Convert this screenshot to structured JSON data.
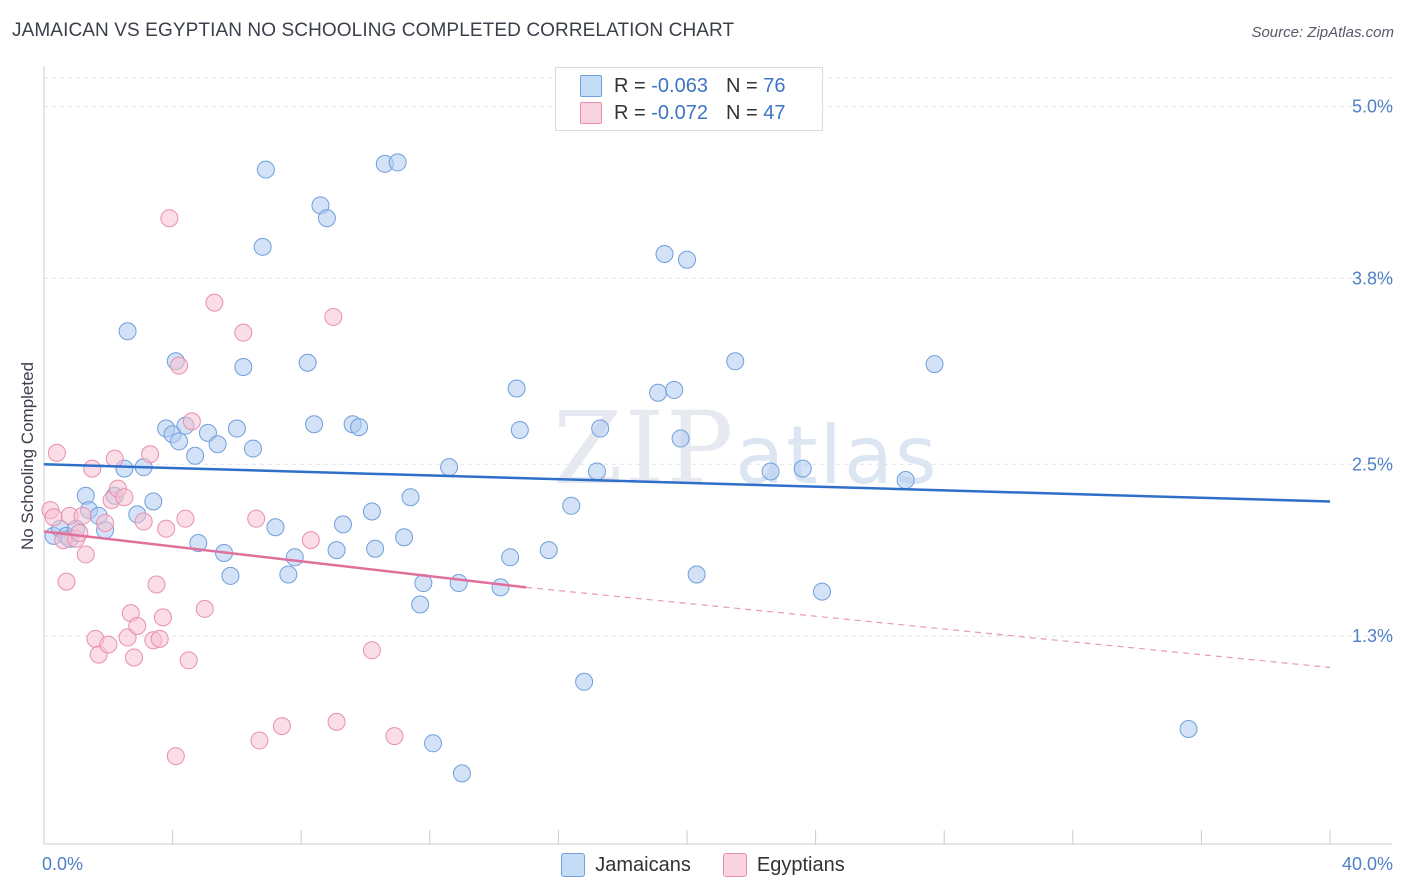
{
  "header": {
    "title": "JAMAICAN VS EGYPTIAN NO SCHOOLING COMPLETED CORRELATION CHART",
    "source": "Source: ZipAtlas.com"
  },
  "legend_stats": {
    "jamaicans": {
      "r_label": "R = ",
      "r_value": "-0.063",
      "n_label": "N = ",
      "n_value": "76",
      "color": "#aecbf0"
    },
    "egyptians": {
      "r_label": "R = ",
      "r_value": "-0.072",
      "n_label": "N = ",
      "n_value": "47",
      "color": "#f6c1d2"
    }
  },
  "bottom_legend": {
    "jamaicans": "Jamaicans",
    "egyptians": "Egyptians"
  },
  "watermark": {
    "zip": "ZIP",
    "atlas": "atlas"
  },
  "chart_data": {
    "type": "scatter",
    "title": "JAMAICAN VS EGYPTIAN NO SCHOOLING COMPLETED CORRELATION CHART",
    "xlabel": "",
    "ylabel": "No Schooling Completed",
    "xlim": [
      0,
      40
    ],
    "ylim": [
      0,
      5.2
    ],
    "x_tick_labels": [
      "0.0%",
      "40.0%"
    ],
    "y_ticks": [
      1.3,
      2.5,
      3.8,
      5.0
    ],
    "y_tick_labels": [
      "1.3%",
      "2.5%",
      "3.8%",
      "5.0%"
    ],
    "grid": true,
    "legend_position": "top-center",
    "series": [
      {
        "name": "Jamaicans",
        "color": "#aecbf0",
        "stroke": "#6f9fdc",
        "trend": {
          "x": [
            0,
            40
          ],
          "y": [
            2.5,
            2.24
          ],
          "color": "#2f6fc9"
        },
        "points": [
          [
            0.3,
            2.0
          ],
          [
            0.5,
            2.05
          ],
          [
            0.7,
            2.0
          ],
          [
            0.8,
            1.98
          ],
          [
            1.0,
            2.05
          ],
          [
            1.3,
            2.28
          ],
          [
            1.4,
            2.18
          ],
          [
            1.7,
            2.14
          ],
          [
            1.9,
            2.04
          ],
          [
            2.2,
            2.28
          ],
          [
            2.5,
            2.47
          ],
          [
            2.6,
            3.43
          ],
          [
            2.9,
            2.15
          ],
          [
            3.1,
            2.48
          ],
          [
            3.4,
            2.24
          ],
          [
            3.8,
            2.75
          ],
          [
            4.0,
            2.71
          ],
          [
            4.1,
            3.22
          ],
          [
            4.2,
            2.66
          ],
          [
            4.4,
            2.77
          ],
          [
            4.7,
            2.56
          ],
          [
            4.8,
            1.95
          ],
          [
            5.1,
            2.72
          ],
          [
            5.4,
            2.64
          ],
          [
            5.6,
            1.88
          ],
          [
            5.8,
            1.72
          ],
          [
            6.0,
            2.75
          ],
          [
            6.2,
            3.18
          ],
          [
            6.5,
            2.61
          ],
          [
            6.8,
            4.02
          ],
          [
            6.9,
            4.56
          ],
          [
            7.2,
            2.06
          ],
          [
            7.6,
            1.73
          ],
          [
            7.8,
            1.85
          ],
          [
            8.2,
            3.21
          ],
          [
            8.4,
            2.78
          ],
          [
            8.6,
            4.31
          ],
          [
            8.8,
            4.22
          ],
          [
            9.1,
            1.9
          ],
          [
            9.3,
            2.08
          ],
          [
            9.6,
            2.78
          ],
          [
            9.8,
            2.76
          ],
          [
            10.2,
            2.17
          ],
          [
            10.3,
            1.91
          ],
          [
            10.6,
            4.6
          ],
          [
            11.0,
            4.61
          ],
          [
            11.2,
            1.99
          ],
          [
            11.4,
            2.27
          ],
          [
            11.7,
            1.52
          ],
          [
            11.8,
            1.67
          ],
          [
            12.1,
            0.55
          ],
          [
            12.6,
            2.48
          ],
          [
            12.9,
            1.67
          ],
          [
            13.0,
            0.34
          ],
          [
            14.2,
            1.64
          ],
          [
            14.5,
            1.85
          ],
          [
            14.7,
            3.03
          ],
          [
            14.8,
            2.74
          ],
          [
            15.7,
            1.9
          ],
          [
            16.4,
            2.21
          ],
          [
            16.8,
            0.98
          ],
          [
            17.2,
            2.45
          ],
          [
            17.3,
            2.75
          ],
          [
            19.1,
            3.0
          ],
          [
            19.3,
            3.97
          ],
          [
            19.6,
            3.02
          ],
          [
            19.8,
            2.68
          ],
          [
            20.0,
            3.93
          ],
          [
            20.3,
            1.73
          ],
          [
            21.5,
            3.22
          ],
          [
            22.6,
            2.45
          ],
          [
            23.6,
            2.47
          ],
          [
            24.2,
            1.61
          ],
          [
            26.8,
            2.39
          ],
          [
            27.7,
            3.2
          ],
          [
            35.6,
            0.65
          ]
        ]
      },
      {
        "name": "Egyptians",
        "color": "#f6c1d2",
        "stroke": "#e98fae",
        "trend": {
          "x": [
            0,
            15
          ],
          "y": [
            2.03,
            1.64
          ],
          "color": "#e0709c"
        },
        "trend_extension": {
          "x": [
            15,
            40
          ],
          "y": [
            1.64,
            1.08
          ],
          "color": "#e899b6"
        },
        "points": [
          [
            0.2,
            2.18
          ],
          [
            0.3,
            2.13
          ],
          [
            0.4,
            2.58
          ],
          [
            0.6,
            1.97
          ],
          [
            0.7,
            1.68
          ],
          [
            0.8,
            2.14
          ],
          [
            1.0,
            1.98
          ],
          [
            1.1,
            2.02
          ],
          [
            1.2,
            2.14
          ],
          [
            1.3,
            1.87
          ],
          [
            1.5,
            2.47
          ],
          [
            1.6,
            1.28
          ],
          [
            1.7,
            1.17
          ],
          [
            1.9,
            2.09
          ],
          [
            2.0,
            1.24
          ],
          [
            2.1,
            2.25
          ],
          [
            2.2,
            2.54
          ],
          [
            2.3,
            2.33
          ],
          [
            2.5,
            2.27
          ],
          [
            2.6,
            1.29
          ],
          [
            2.7,
            1.46
          ],
          [
            2.8,
            1.15
          ],
          [
            2.9,
            1.37
          ],
          [
            3.1,
            2.1
          ],
          [
            3.3,
            2.57
          ],
          [
            3.4,
            1.27
          ],
          [
            3.5,
            1.66
          ],
          [
            3.6,
            1.28
          ],
          [
            3.7,
            1.43
          ],
          [
            3.8,
            2.05
          ],
          [
            3.9,
            4.22
          ],
          [
            4.1,
            0.46
          ],
          [
            4.2,
            3.19
          ],
          [
            4.4,
            2.12
          ],
          [
            4.5,
            1.13
          ],
          [
            4.6,
            2.8
          ],
          [
            5.0,
            1.49
          ],
          [
            5.3,
            3.63
          ],
          [
            6.2,
            3.42
          ],
          [
            6.6,
            2.12
          ],
          [
            6.7,
            0.57
          ],
          [
            7.4,
            0.67
          ],
          [
            8.3,
            1.97
          ],
          [
            9.0,
            3.53
          ],
          [
            9.1,
            0.7
          ],
          [
            10.2,
            1.2
          ],
          [
            10.9,
            0.6
          ]
        ]
      }
    ]
  }
}
